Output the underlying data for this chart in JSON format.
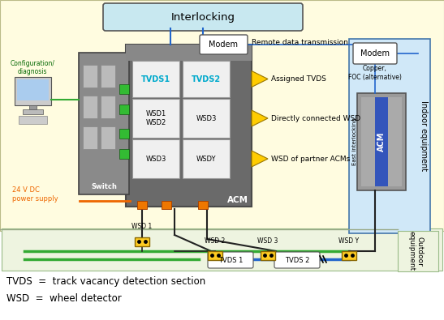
{
  "title_text": "Interlocking",
  "modem_text": "Modem",
  "remote_text": "Remote data transmission",
  "config_text": "Configuration/\ndiagnosis",
  "acm_text": "ACM",
  "switch_text": "Switch",
  "power_text": "24 V DC\npower supply",
  "indoor_text": "Indoor equipment",
  "outdoor_text": "Outdoor\nequipment",
  "east_text": "East interlocking",
  "copper_text": "Copper,\nFOC (alternative)",
  "modem2_text": "Modem",
  "tvds1_label": "TVDS1",
  "tvds2_label": "TVDS2",
  "arrow_labels": [
    "Assigned TVDS",
    "Directly connected WSD",
    "WSD of partner ACMs"
  ],
  "tvds_bottom_labels": [
    "TVDS 1",
    "TVDS 2"
  ],
  "wsd_bottom_labels": [
    "WSD 1",
    "WSD 2",
    "WSD 3",
    "WSD Y"
  ],
  "footnote1": "TVDS  =  track vacancy detection section",
  "footnote2": "WSD  =  wheel detector",
  "bg_yellow": "#fffce0",
  "bg_green": "#eef4e0",
  "interlocking_bg": "#c8e8f0",
  "acm_gray": "#6a6a6a",
  "acm_dark": "#4a4a4a",
  "cell_white": "#f0f0f0",
  "indoor_bg": "#d0e8f8",
  "acm2_gray": "#888888",
  "acm2_blue": "#3355aa",
  "green_wire": "#33aa33",
  "blue_wire": "#2266cc",
  "orange_wire": "#ee6600",
  "black_wire": "#222222",
  "yellow_arrow": "#ffcc00",
  "wsd_yellow": "#ffcc22",
  "track_green": "#33aa33",
  "track_blue": "#2266cc",
  "tvds_border": "#aaaaaa",
  "footnote_size": 8.5
}
